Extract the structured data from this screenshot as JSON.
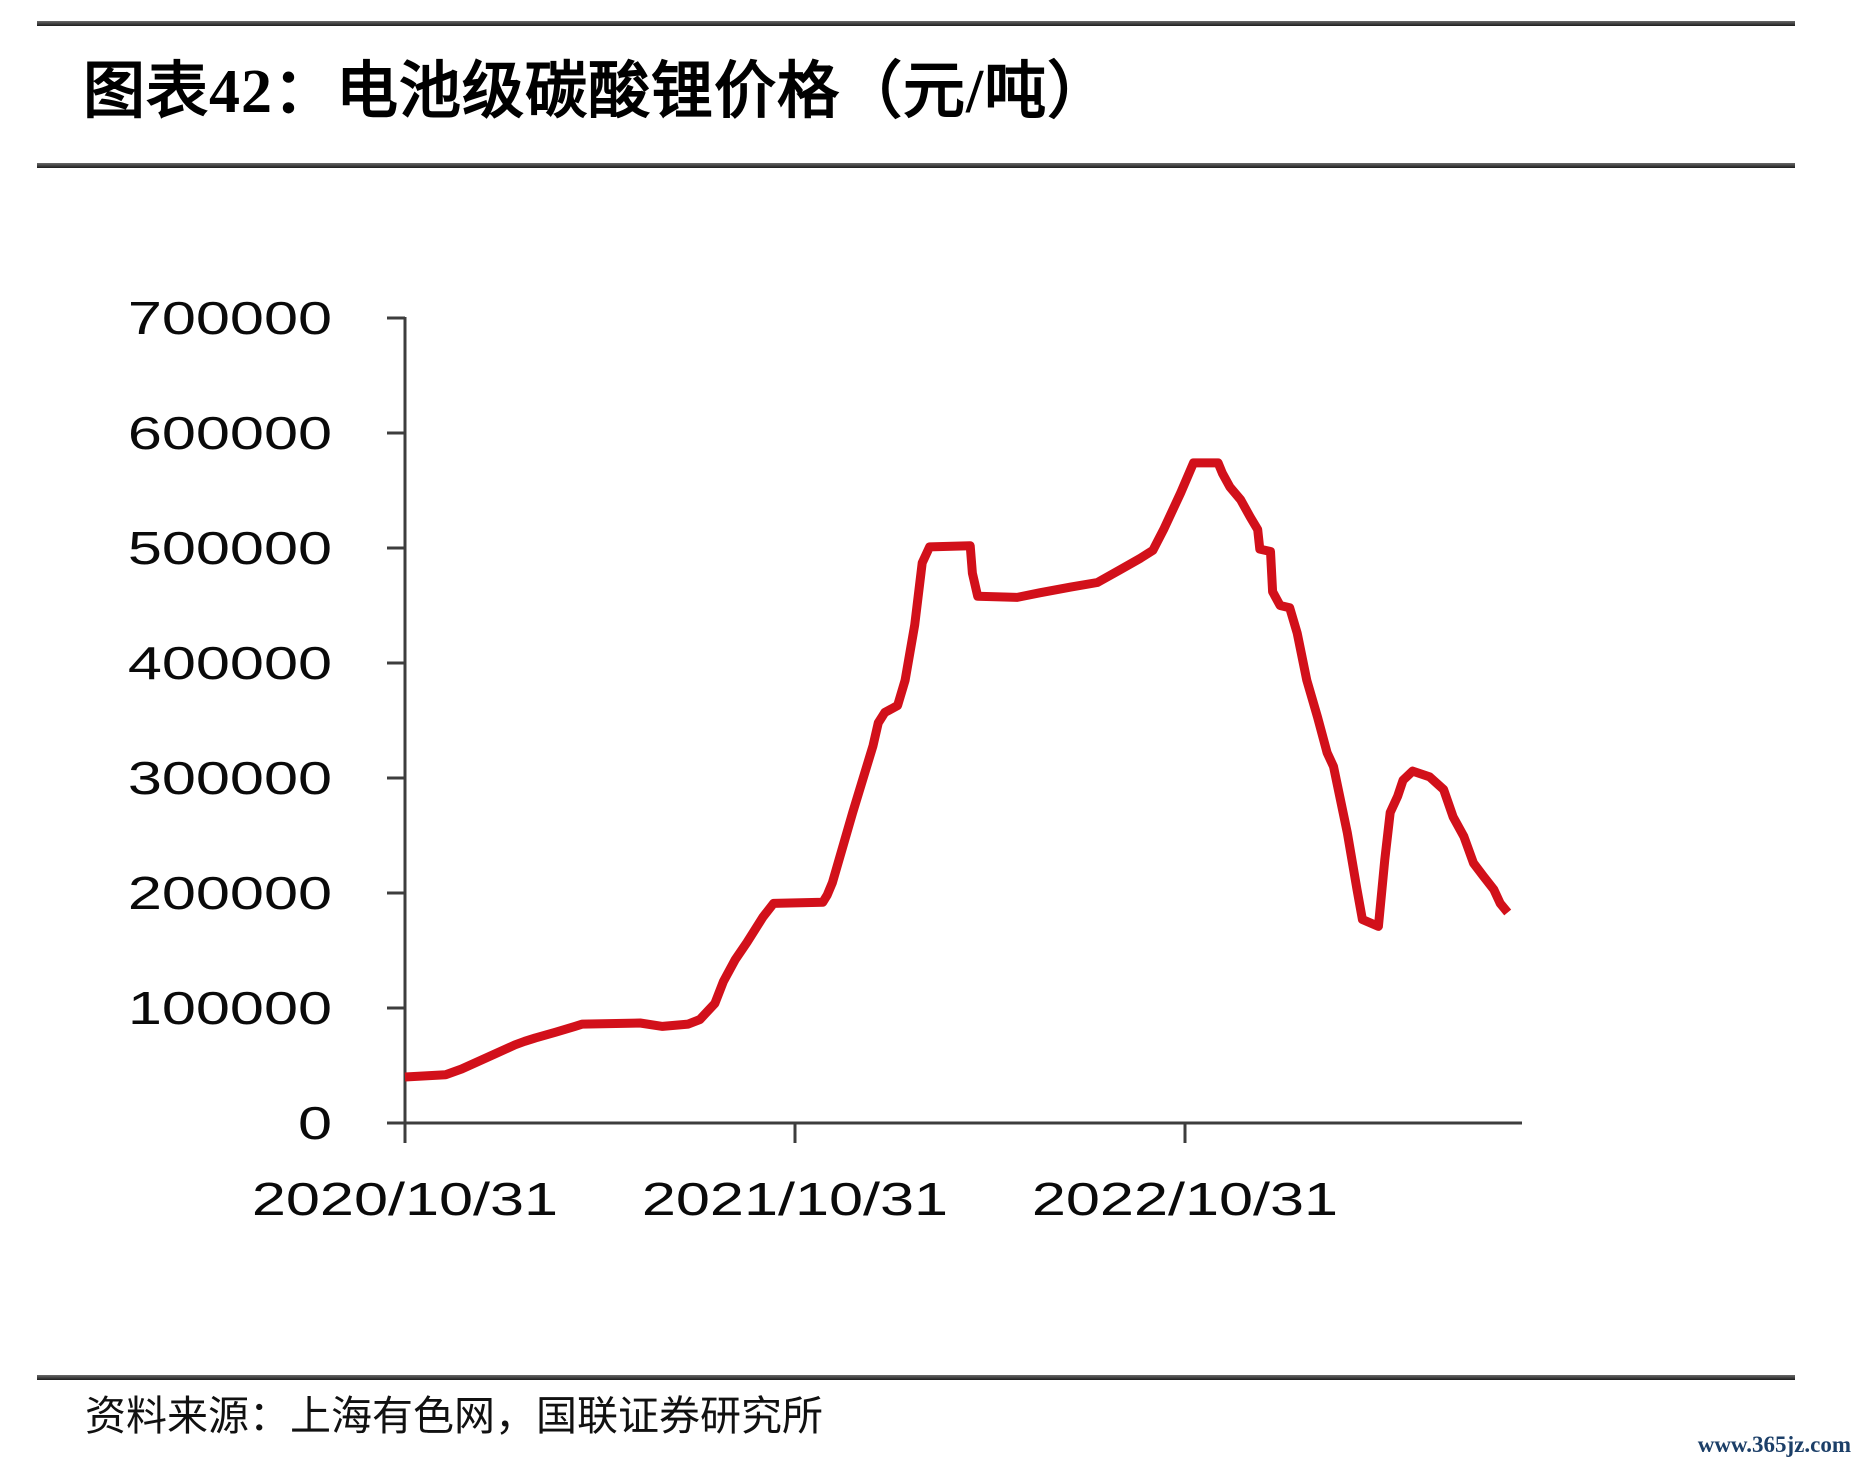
{
  "page": {
    "watermark": "www.365jz.com",
    "watermark_color": "#1c3f68",
    "background_color": "#ffffff"
  },
  "figure": {
    "title": "图表42：电池级碳酸锂价格（元/吨）",
    "source_label": "资料来源：上海有色网，国联证券研究所"
  },
  "chart_data": {
    "type": "line",
    "title": "电池级碳酸锂价格（元/吨）",
    "xlabel": "",
    "ylabel": "",
    "grid": false,
    "legend": "none",
    "ylim": [
      0,
      700000
    ],
    "y_ticks": [
      0,
      100000,
      200000,
      300000,
      400000,
      500000,
      600000,
      700000
    ],
    "x_ticks": [
      {
        "label": "2020/10/31",
        "date": "2020-10-31"
      },
      {
        "label": "2021/10/31",
        "date": "2021-10-31"
      },
      {
        "label": "2022/10/31",
        "date": "2022-10-31"
      }
    ],
    "axis_color": "#3d3d3d",
    "series": [
      {
        "name": "电池级碳酸锂价格",
        "color": "#d2101a",
        "points": [
          [
            "2020-10-31",
            40000
          ],
          [
            "2020-12-08",
            42000
          ],
          [
            "2020-12-23",
            47000
          ],
          [
            "2021-01-23",
            60000
          ],
          [
            "2021-02-11",
            68000
          ],
          [
            "2021-02-20",
            71000
          ],
          [
            "2021-03-02",
            74000
          ],
          [
            "2021-03-21",
            79000
          ],
          [
            "2021-04-08",
            84000
          ],
          [
            "2021-04-15",
            86000
          ],
          [
            "2021-06-08",
            87000
          ],
          [
            "2021-06-29",
            84000
          ],
          [
            "2021-07-23",
            86000
          ],
          [
            "2021-08-03",
            90000
          ],
          [
            "2021-08-17",
            104000
          ],
          [
            "2021-08-25",
            123000
          ],
          [
            "2021-09-05",
            142000
          ],
          [
            "2021-09-16",
            157000
          ],
          [
            "2021-10-01",
            179000
          ],
          [
            "2021-10-11",
            191000
          ],
          [
            "2021-11-26",
            192000
          ],
          [
            "2021-11-30",
            198000
          ],
          [
            "2021-12-05",
            209000
          ],
          [
            "2021-12-24",
            270000
          ],
          [
            "2022-01-12",
            328000
          ],
          [
            "2022-01-17",
            348000
          ],
          [
            "2022-01-23",
            357000
          ],
          [
            "2022-02-04",
            363000
          ],
          [
            "2022-02-11",
            385000
          ],
          [
            "2022-02-20",
            433000
          ],
          [
            "2022-02-27",
            487000
          ],
          [
            "2022-03-06",
            501000
          ],
          [
            "2022-04-13",
            502000
          ],
          [
            "2022-04-15",
            478000
          ],
          [
            "2022-04-20",
            458000
          ],
          [
            "2022-05-27",
            457000
          ],
          [
            "2022-06-17",
            461000
          ],
          [
            "2022-07-16",
            466000
          ],
          [
            "2022-08-10",
            470000
          ],
          [
            "2022-08-31",
            481000
          ],
          [
            "2022-09-19",
            491000
          ],
          [
            "2022-10-01",
            498000
          ],
          [
            "2022-10-11",
            516000
          ],
          [
            "2022-10-27",
            548000
          ],
          [
            "2022-11-08",
            574000
          ],
          [
            "2022-12-01",
            574000
          ],
          [
            "2022-12-05",
            565000
          ],
          [
            "2022-12-12",
            553000
          ],
          [
            "2022-12-22",
            542000
          ],
          [
            "2022-12-31",
            527000
          ],
          [
            "2023-01-07",
            516000
          ],
          [
            "2023-01-09",
            499000
          ],
          [
            "2023-01-19",
            497000
          ],
          [
            "2023-01-21",
            462000
          ],
          [
            "2023-01-28",
            450000
          ],
          [
            "2023-02-06",
            448000
          ],
          [
            "2023-02-13",
            426000
          ],
          [
            "2023-02-22",
            385000
          ],
          [
            "2023-03-04",
            353000
          ],
          [
            "2023-03-13",
            322000
          ],
          [
            "2023-03-19",
            310000
          ],
          [
            "2023-04-01",
            252000
          ],
          [
            "2023-04-10",
            203000
          ],
          [
            "2023-04-15",
            177000
          ],
          [
            "2023-04-30",
            171000
          ],
          [
            "2023-05-06",
            229000
          ],
          [
            "2023-05-11",
            270000
          ],
          [
            "2023-05-18",
            284000
          ],
          [
            "2023-05-23",
            298000
          ],
          [
            "2023-06-01",
            306000
          ],
          [
            "2023-06-17",
            301000
          ],
          [
            "2023-06-30",
            290000
          ],
          [
            "2023-07-09",
            266000
          ],
          [
            "2023-07-19",
            249000
          ],
          [
            "2023-07-28",
            226000
          ],
          [
            "2023-08-06",
            215000
          ],
          [
            "2023-08-16",
            203000
          ],
          [
            "2023-08-22",
            191000
          ],
          [
            "2023-08-29",
            183000
          ]
        ]
      }
    ]
  }
}
